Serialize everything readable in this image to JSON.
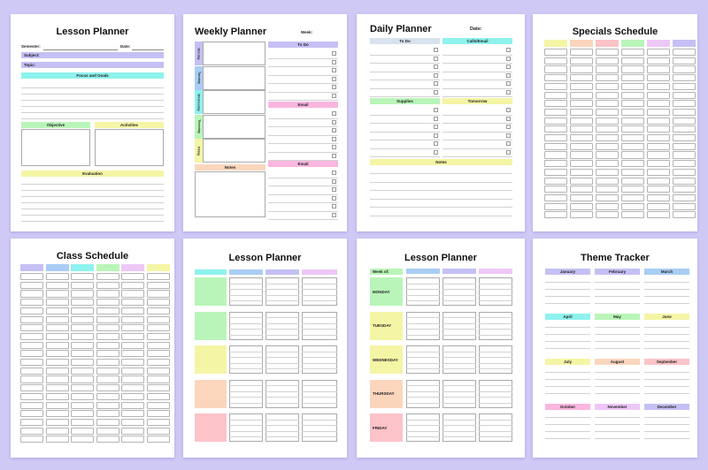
{
  "colors": {
    "purple": "#c5c0f4",
    "lavender": "#cfc9f5",
    "cyan": "#8ef2ee",
    "green": "#b9f5b8",
    "yellow": "#f4f5a5",
    "pink": "#f9b6e0",
    "peach": "#fbd6bd",
    "blue": "#a9cdf5",
    "rose": "#fcc3c8",
    "lilac": "#eec7f7"
  },
  "lesson1": {
    "title": "Lesson Planner",
    "semester": "Semester:",
    "date": "Date:",
    "subject": "Subject:",
    "topic": "Topic:",
    "focus": "Focus and Goals",
    "objective": "Objective",
    "activities": "Activities",
    "evaluation": "Evaluation"
  },
  "weekly": {
    "title": "Weekly Planner",
    "week": "Week:",
    "days": [
      "Monday",
      "Tuesday",
      "Wednesday",
      "Thursday",
      "Friday"
    ],
    "todo": "To Do",
    "email1": "Email",
    "email2": "Email",
    "notes": "Notes"
  },
  "daily": {
    "title": "Daily Planner",
    "date": "Date:",
    "todo": "To Do",
    "calls": "Calls/Email",
    "supplies": "Supplies",
    "tomorrow": "Tomorrow",
    "notes": "Notes"
  },
  "specials": {
    "title": "Specials Schedule"
  },
  "class": {
    "title": "Class Schedule"
  },
  "lesson2": {
    "title": "Lesson Planner"
  },
  "lesson3": {
    "title": "Lesson Planner",
    "week": "Week of:",
    "days": [
      "MONDAY",
      "TUESDAY",
      "WEDNESDAY",
      "THURSDAY",
      "FRIDAY"
    ]
  },
  "theme": {
    "title": "Theme Tracker",
    "months": [
      "January",
      "February",
      "March",
      "April",
      "May",
      "June",
      "July",
      "August",
      "September",
      "October",
      "November",
      "December"
    ]
  }
}
